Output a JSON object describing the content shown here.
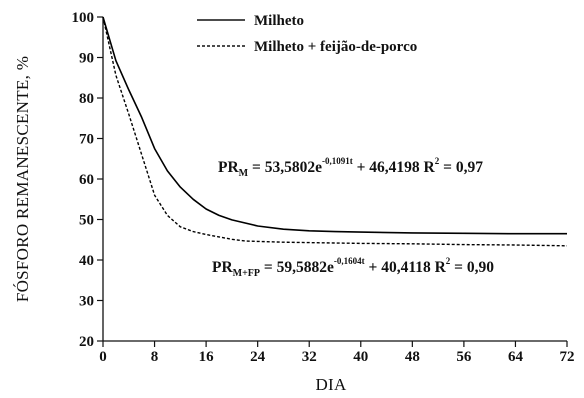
{
  "chart_data": {
    "type": "line",
    "xlabel": "DIA",
    "ylabel": "FÓSFORO REMANESCENTE, %",
    "xlim": [
      0,
      72
    ],
    "ylim": [
      20,
      100
    ],
    "xticks": [
      0,
      8,
      16,
      24,
      32,
      40,
      48,
      56,
      64,
      72
    ],
    "yticks": [
      20,
      30,
      40,
      50,
      60,
      70,
      80,
      90,
      100
    ],
    "grid": false,
    "legend_position": "top-center",
    "series": [
      {
        "name": "Milheto",
        "line_style": "solid",
        "color": "#000000",
        "x": [
          0,
          2,
          4,
          6,
          8,
          10,
          12,
          14,
          16,
          18,
          20,
          24,
          28,
          32,
          36,
          40,
          48,
          56,
          64,
          72
        ],
        "y": [
          100,
          89.2,
          82.0,
          75.2,
          67.5,
          62.0,
          58.0,
          55.0,
          52.6,
          51.0,
          49.9,
          48.4,
          47.6,
          47.2,
          47.0,
          46.9,
          46.7,
          46.6,
          46.5,
          46.5
        ]
      },
      {
        "name": "Milheto + feijão-de-porco",
        "line_style": "dashed",
        "color": "#000000",
        "x": [
          0,
          2,
          4,
          6,
          8,
          10,
          12,
          14,
          16,
          18,
          20,
          22,
          24,
          28,
          32,
          40,
          48,
          56,
          64,
          72
        ],
        "y": [
          100,
          85.6,
          76.0,
          66.0,
          56.0,
          51.0,
          48.2,
          47.0,
          46.3,
          45.7,
          45.1,
          44.7,
          44.6,
          44.4,
          44.3,
          44.1,
          44.0,
          43.8,
          43.7,
          43.5
        ]
      }
    ],
    "annotations": [
      {
        "base": "PR",
        "subscript": "M",
        "text1": " = 53,5802e",
        "superscript": "-0,1091t",
        "text2": " + 46,4198   R",
        "r_sup": "2",
        "text3": " = 0,97"
      },
      {
        "base": "PR",
        "subscript": "M+FP",
        "text1": " = 59,5882e",
        "superscript": "-0,1604t",
        "text2": " + 40,4118   R",
        "r_sup": "2",
        "text3": " = 0,90"
      }
    ]
  }
}
